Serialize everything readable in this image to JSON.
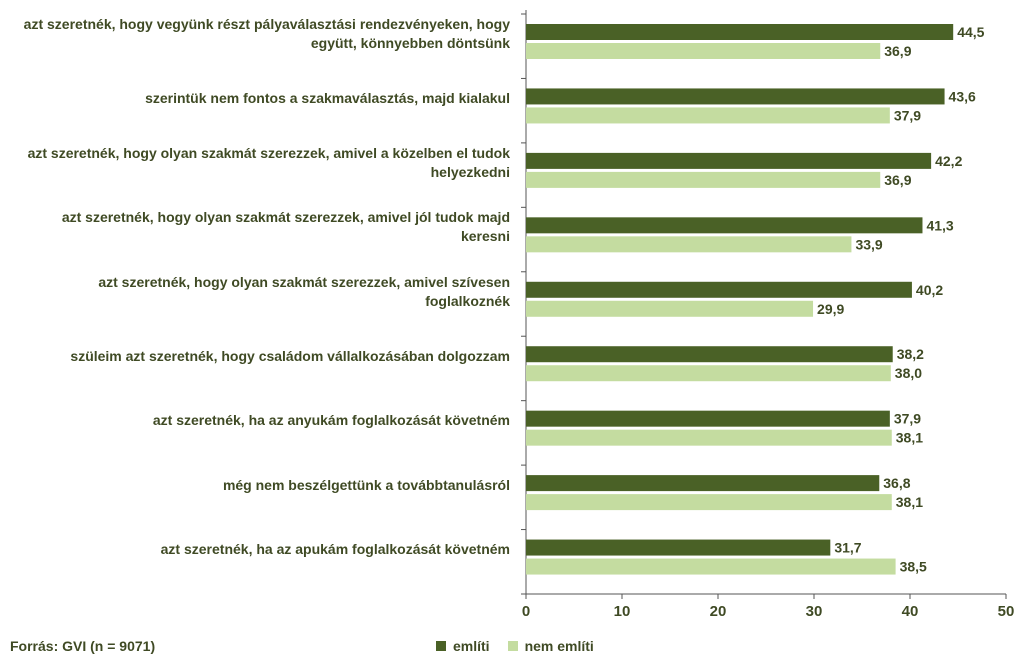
{
  "chart_data": {
    "type": "bar",
    "orientation": "horizontal",
    "categories": [
      "azt szeretnék, hogy vegyünk részt pályaválasztási rendezvényeken, hogy együtt, könnyebben döntsünk",
      "szerintük nem fontos a szakmaválasztás, majd kialakul",
      "azt szeretnék, hogy olyan szakmát szerezzek, amivel a közelben el tudok helyezkedni",
      "azt szeretnék, hogy olyan szakmát szerezzek, amivel jól tudok majd keresni",
      "azt szeretnék, hogy olyan szakmát szerezzek, amivel szívesen foglalkoznék",
      "szüleim azt szeretnék, hogy családom vállalkozásában dolgozzam",
      "azt szeretnék, ha az anyukám foglalkozását követném",
      "még nem beszélgettünk a továbbtanulásról",
      "azt szeretnék, ha az apukám foglalkozását követném"
    ],
    "series": [
      {
        "name": "említi",
        "color": "#4a6126",
        "values": [
          44.5,
          43.6,
          42.2,
          41.3,
          40.2,
          38.2,
          37.9,
          36.8,
          31.7
        ],
        "labels": [
          "44,5",
          "43,6",
          "42,2",
          "41,3",
          "40,2",
          "38,2",
          "37,9",
          "36,8",
          "31,7"
        ]
      },
      {
        "name": "nem említi",
        "color": "#c4dca0",
        "values": [
          36.9,
          37.9,
          36.9,
          33.9,
          29.9,
          38.0,
          38.1,
          38.1,
          38.5
        ],
        "labels": [
          "36,9",
          "37,9",
          "36,9",
          "33,9",
          "29,9",
          "38,0",
          "38,1",
          "38,1",
          "38,5"
        ]
      }
    ],
    "xlim": [
      0,
      50
    ],
    "xticks": [
      0,
      10,
      20,
      30,
      40,
      50
    ],
    "grid": false,
    "legend_position": "bottom"
  },
  "source": "Forrás: GVI (n = 9071)"
}
